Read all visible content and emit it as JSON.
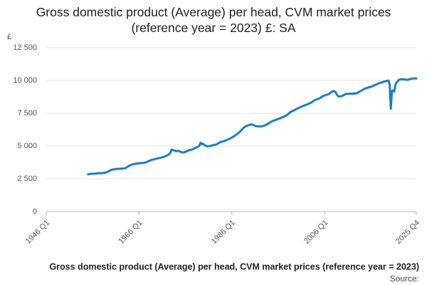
{
  "chart_data": {
    "type": "line",
    "title": "Gross domestic product (Average) per head, CVM market prices (reference year = 2023) £: SA",
    "y_unit": "£",
    "xlabel": "Gross domestic product (Average) per head, CVM market prices (reference year = 2023)",
    "source": "Source:",
    "color": "#1b7fc1",
    "grid": true,
    "ylim": [
      0,
      12500
    ],
    "yticks": [
      0,
      {
        "value": 2500,
        "label": "2 500"
      },
      {
        "value": 5000,
        "label": "5 000"
      },
      {
        "value": 7500,
        "label": "7 500"
      },
      {
        "value": 10000,
        "label": "10 000"
      },
      {
        "value": 12500,
        "label": "12 500"
      }
    ],
    "categories": [
      "1946 Q1",
      null,
      null,
      null,
      null,
      null,
      null,
      null,
      null,
      null,
      null,
      null,
      null,
      null,
      null,
      null,
      null,
      null,
      null,
      null,
      null,
      null,
      null,
      null,
      null,
      null,
      null,
      null,
      null,
      null,
      null,
      null,
      null,
      null,
      null,
      null,
      null,
      null,
      null,
      null,
      null,
      null,
      null,
      null,
      null,
      null,
      null,
      null,
      null,
      null,
      null,
      null,
      null,
      null,
      null,
      null,
      null,
      null,
      null,
      null,
      null,
      null,
      null,
      null,
      null,
      null,
      null,
      null,
      null,
      null,
      null,
      null,
      null,
      null,
      null,
      null,
      null,
      null,
      null,
      null,
      "1966 Q1",
      null,
      null,
      null,
      null,
      null,
      null,
      null,
      null,
      null,
      null,
      null,
      null,
      null,
      null,
      null,
      null,
      null,
      null,
      null,
      null,
      null,
      null,
      null,
      null,
      null,
      null,
      null,
      null,
      null,
      null,
      null,
      null,
      null,
      null,
      null,
      null,
      null,
      null,
      null,
      null,
      null,
      null,
      null,
      null,
      null,
      null,
      null,
      null,
      null,
      null,
      null,
      null,
      null,
      null,
      null,
      null,
      null,
      null,
      null,
      null,
      null,
      null,
      null,
      null,
      null,
      null,
      null,
      null,
      null,
      null,
      null,
      null,
      null,
      null,
      null,
      null,
      null,
      null,
      null,
      "1986 Q1",
      null,
      null,
      null,
      null,
      null,
      null,
      null,
      null,
      null,
      null,
      null,
      null,
      null,
      null,
      null,
      null,
      null,
      null,
      null,
      null,
      null,
      null,
      null,
      null,
      null,
      null,
      null,
      null,
      null,
      null,
      null,
      null,
      null,
      null,
      null,
      null,
      null,
      null,
      null,
      null,
      null,
      null,
      null,
      null,
      null,
      null,
      null,
      null,
      null,
      null,
      null,
      null,
      null,
      null,
      null,
      null,
      null,
      null,
      null,
      null,
      null,
      null,
      null,
      null,
      null,
      null,
      null,
      null,
      null,
      null,
      null,
      null,
      null,
      null,
      null,
      null,
      null,
      null,
      null,
      "2006 Q1",
      null,
      null,
      null,
      null,
      null,
      null,
      null,
      null,
      null,
      null,
      null,
      null,
      null,
      null,
      null,
      null,
      null,
      null,
      null,
      null,
      null,
      null,
      null,
      null,
      null,
      null,
      null,
      null,
      null,
      null,
      null,
      null,
      null,
      null,
      null,
      null,
      null,
      null,
      null,
      null,
      null,
      null,
      null,
      null,
      null,
      null,
      null,
      null,
      null,
      null,
      null,
      null,
      null,
      null,
      null,
      null,
      null,
      null,
      null,
      null,
      null,
      null,
      null,
      null,
      null,
      null,
      null,
      null,
      null,
      null,
      null,
      null,
      null,
      null,
      null,
      null,
      null,
      null,
      "2025 Q4"
    ],
    "values": [
      null,
      null,
      null,
      null,
      null,
      null,
      null,
      null,
      null,
      null,
      null,
      null,
      null,
      null,
      null,
      null,
      null,
      null,
      null,
      null,
      null,
      null,
      null,
      null,
      null,
      null,
      null,
      null,
      null,
      null,
      null,
      null,
      null,
      null,
      null,
      null,
      2850,
      2860,
      2870,
      2880,
      2890,
      2890,
      2900,
      2910,
      2920,
      2930,
      2930,
      2940,
      2930,
      2940,
      2960,
      2980,
      3000,
      3040,
      3090,
      3130,
      3180,
      3200,
      3220,
      3230,
      3250,
      3260,
      3260,
      3270,
      3270,
      3280,
      3290,
      3300,
      3310,
      3360,
      3420,
      3470,
      3520,
      3560,
      3590,
      3610,
      3630,
      3650,
      3660,
      3670,
      3680,
      3700,
      3710,
      3700,
      3720,
      3740,
      3760,
      3790,
      3850,
      3880,
      3910,
      3950,
      3970,
      3990,
      4010,
      4040,
      4060,
      4080,
      4100,
      4120,
      4140,
      4170,
      4200,
      4240,
      4280,
      4320,
      4400,
      4480,
      4720,
      4700,
      4680,
      4650,
      4600,
      4640,
      4620,
      4590,
      4560,
      4520,
      4510,
      4530,
      4560,
      4600,
      4640,
      4680,
      4700,
      4720,
      4750,
      4790,
      4830,
      4880,
      4920,
      4960,
      5030,
      5250,
      5150,
      5180,
      5100,
      5050,
      5000,
      4980,
      4990,
      5000,
      5020,
      5050,
      5070,
      5090,
      5110,
      5140,
      5200,
      5250,
      5290,
      5330,
      5350,
      5360,
      5400,
      5440,
      5480,
      5520,
      5560,
      5600,
      5650,
      5700,
      5760,
      5820,
      5880,
      5950,
      6030,
      6100,
      6200,
      6300,
      6380,
      6450,
      6510,
      6550,
      6580,
      6610,
      6640,
      6660,
      6620,
      6580,
      6540,
      6520,
      6510,
      6500,
      6500,
      6500,
      6510,
      6530,
      6560,
      6600,
      6650,
      6700,
      6750,
      6810,
      6860,
      6900,
      6940,
      6970,
      7000,
      7040,
      7070,
      7100,
      7140,
      7180,
      7200,
      7250,
      7300,
      7350,
      7400,
      7480,
      7560,
      7620,
      7660,
      7700,
      7740,
      7790,
      7840,
      7880,
      7920,
      7960,
      8000,
      8040,
      8080,
      8120,
      8150,
      8180,
      8220,
      8260,
      8300,
      8360,
      8420,
      8480,
      8520,
      8560,
      8590,
      8620,
      8660,
      8720,
      8780,
      8830,
      8860,
      8890,
      8920,
      8950,
      9000,
      9060,
      9120,
      9180,
      9200,
      9150,
      9020,
      8860,
      8790,
      8780,
      8800,
      8820,
      8870,
      8920,
      8960,
      8980,
      8990,
      8990,
      9000,
      8990,
      9000,
      8980,
      9030,
      9010,
      9050,
      9090,
      9150,
      9200,
      9250,
      9300,
      9350,
      9390,
      9420,
      9450,
      9470,
      9500,
      9530,
      9560,
      9600,
      9640,
      9680,
      9720,
      9760,
      9800,
      9820,
      9850,
      9880,
      9900,
      9940,
      9960,
      9980,
      10000,
      9730,
      7850,
      9200,
      9250,
      9150,
      9700,
      9850,
      9950,
      10050,
      10080,
      10100,
      10100,
      10090,
      10080,
      10070,
      10050,
      10060,
      10100,
      10120,
      10140,
      10150,
      10160,
      10170,
      10150
    ]
  }
}
